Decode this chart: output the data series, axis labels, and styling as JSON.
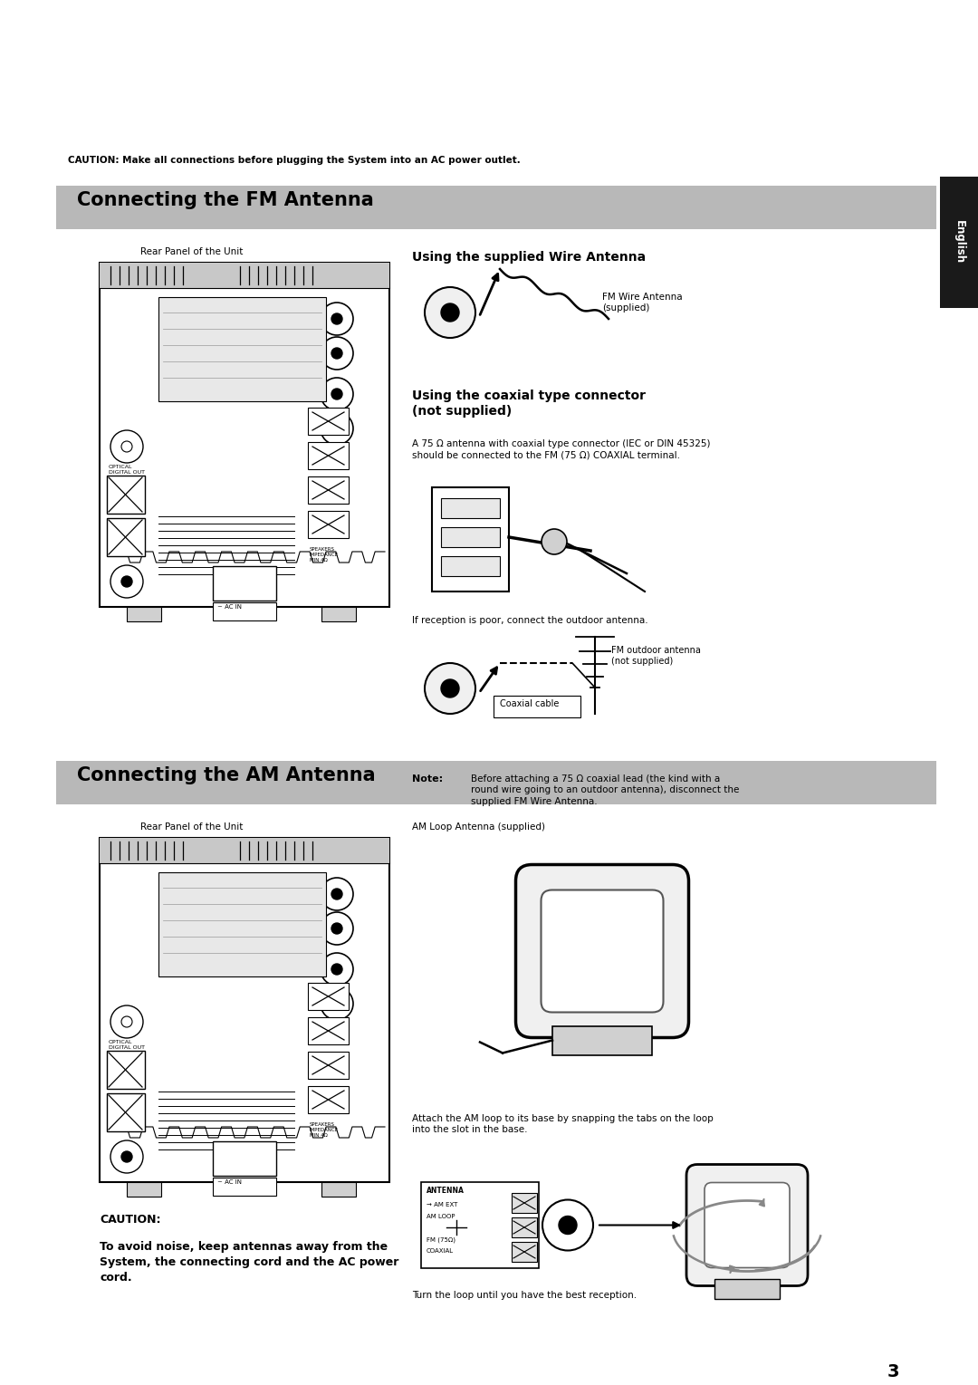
{
  "bg_color": "#ffffff",
  "caution_top_text": "CAUTION: Make all connections before plugging the System into an AC power outlet.",
  "section1_title": "Connecting the FM Antenna",
  "section2_title": "Connecting the AM Antenna",
  "section_title_bg": "#b8b8b8",
  "english_tab_bg": "#1a1a1a",
  "english_tab_text": "English",
  "rear_panel_label": "Rear Panel of the Unit",
  "using_wire_antenna_title": "Using the supplied Wire Antenna",
  "using_coaxial_title": "Using the coaxial type connector\n(not supplied)",
  "coaxial_desc": "A 75 Ω antenna with coaxial type connector (IEC or DIN 45325)\nshould be connected to the FM (75 Ω) COAXIAL terminal.",
  "if_reception_text": "If reception is poor, connect the outdoor antenna.",
  "fm_wire_label": "FM Wire Antenna\n(supplied)",
  "coaxial_cable_label": "Coaxial cable",
  "fm_outdoor_label": "FM outdoor antenna\n(not supplied)",
  "note_text": "Before attaching a 75 Ω coaxial lead (the kind with a\nround wire going to an outdoor antenna), disconnect the\nsupplied FM Wire Antenna.",
  "am_loop_label": "AM Loop Antenna (supplied)",
  "am_attach_text": "Attach the AM loop to its base by snapping the tabs on the loop\ninto the slot in the base.",
  "am_turn_text": "Turn the loop until you have the best reception.",
  "caution2_title": "CAUTION:",
  "caution2_text": "To avoid noise, keep antennas away from the\nSystem, the connecting cord and the AC power\ncord.",
  "page_number": "3"
}
